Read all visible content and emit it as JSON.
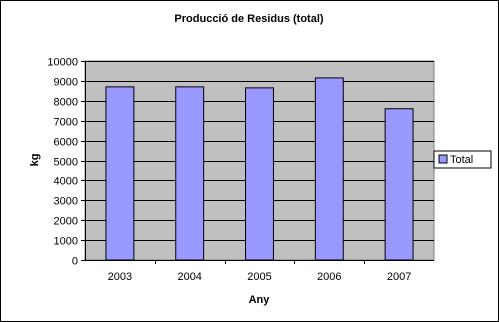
{
  "chart_data": {
    "type": "bar",
    "title": "Producció de Residus (total)",
    "xlabel": "Any",
    "ylabel": "kg",
    "categories": [
      "2003",
      "2004",
      "2005",
      "2006",
      "2007"
    ],
    "series": [
      {
        "name": "Total",
        "values": [
          8700,
          8700,
          8650,
          9150,
          7600
        ]
      }
    ],
    "ylim": [
      0,
      10000
    ],
    "yticks": [
      "0",
      "1000",
      "2000",
      "3000",
      "4000",
      "5000",
      "6000",
      "7000",
      "8000",
      "9000",
      "10000"
    ],
    "grid": true,
    "legend_position": "right",
    "colors": {
      "plot_background": "#c0c0c0",
      "bar_fill": "#9999ff",
      "bar_stroke": "#000000",
      "gridline": "#000000"
    }
  }
}
